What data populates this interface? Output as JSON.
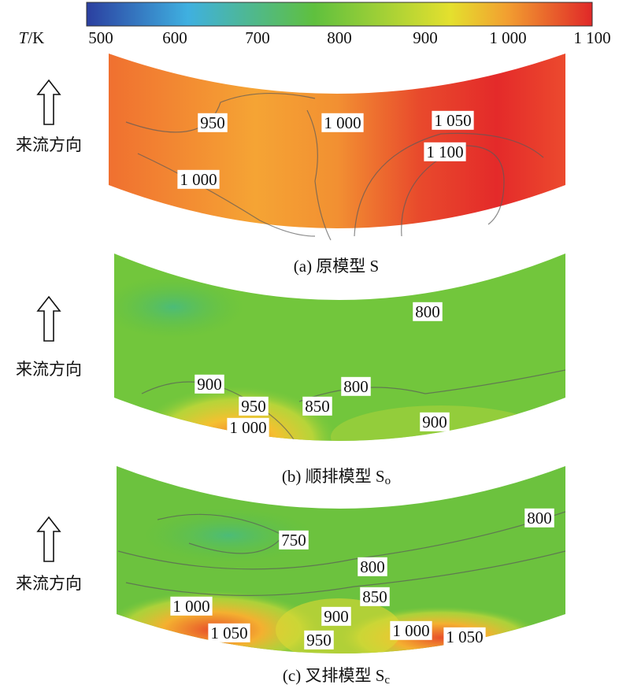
{
  "colorbar": {
    "variable": "T",
    "unit": "/K",
    "tick_labels": [
      "500",
      "600",
      "700",
      "800",
      "900",
      "1 000",
      "1 100"
    ]
  },
  "panels": [
    {
      "flow_label": "来流方向",
      "caption": "(a) 原模型 S",
      "contour_labels": [
        "950",
        "1 000",
        "1 050",
        "1 100",
        "1 000"
      ]
    },
    {
      "flow_label": "来流方向",
      "caption": "(b) 顺排模型 S",
      "caption_subscript": "o",
      "contour_labels": [
        "800",
        "900",
        "800",
        "950",
        "850",
        "1 000",
        "900"
      ]
    },
    {
      "flow_label": "来流方向",
      "caption": "(c) 叉排模型 S",
      "caption_subscript": "c",
      "contour_labels": [
        "800",
        "750",
        "800",
        "850",
        "900",
        "1 000",
        "1 000",
        "1 050",
        "950",
        "1 050"
      ]
    }
  ]
}
